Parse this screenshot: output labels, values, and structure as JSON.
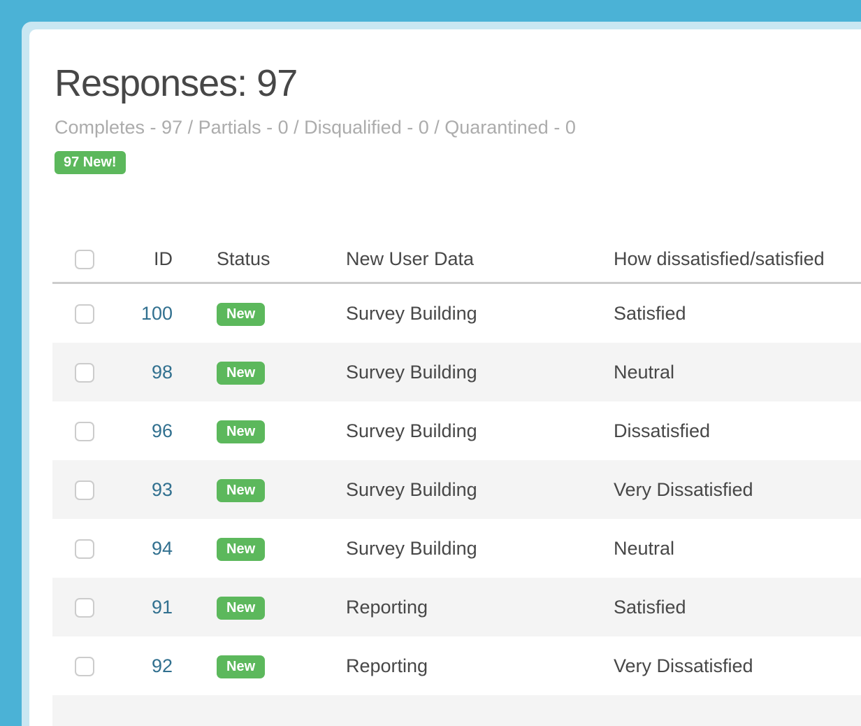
{
  "page": {
    "title": "Responses: 97",
    "subtitle": "Completes - 97 / Partials - 0 / Disqualified - 0 / Quarantined - 0",
    "new_badge_label": "97 New!"
  },
  "table": {
    "columns": {
      "id": "ID",
      "status": "Status",
      "new_user_data": "New User Data",
      "satisfaction": "How dissatisfied/satisfied"
    },
    "rows": [
      {
        "id": "100",
        "status": "New",
        "new_user_data": "Survey Building",
        "satisfaction": "Satisfied"
      },
      {
        "id": "98",
        "status": "New",
        "new_user_data": "Survey Building",
        "satisfaction": "Neutral"
      },
      {
        "id": "96",
        "status": "New",
        "new_user_data": "Survey Building",
        "satisfaction": "Dissatisfied"
      },
      {
        "id": "93",
        "status": "New",
        "new_user_data": "Survey Building",
        "satisfaction": "Very Dissatisfied"
      },
      {
        "id": "94",
        "status": "New",
        "new_user_data": "Survey Building",
        "satisfaction": "Neutral"
      },
      {
        "id": "91",
        "status": "New",
        "new_user_data": "Reporting",
        "satisfaction": "Satisfied"
      },
      {
        "id": "92",
        "status": "New",
        "new_user_data": "Reporting",
        "satisfaction": "Very Dissatisfied"
      }
    ]
  },
  "colors": {
    "background_blue": "#4bb2d6",
    "frame_light_blue": "#c9e7f2",
    "badge_green": "#5cb85c",
    "link_teal": "#31708f",
    "row_stripe_gray": "#f4f4f4",
    "text_dark_gray": "#474747",
    "subtitle_gray": "#acacac"
  }
}
